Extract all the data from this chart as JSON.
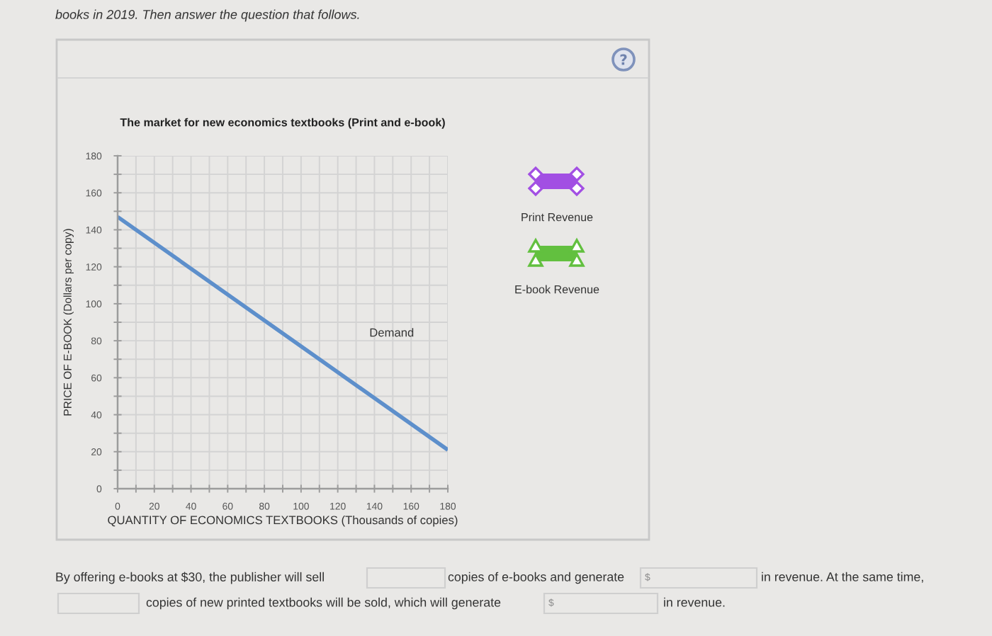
{
  "chart_data": {
    "type": "line",
    "title": "The market for new economics textbooks (Print and e-book)",
    "xlabel": "QUANTITY OF ECONOMICS TEXTBOOKS (Thousands of copies)",
    "ylabel": "PRICE OF E-BOOK (Dollars per copy)",
    "x": [
      0,
      180
    ],
    "series": [
      {
        "name": "Demand",
        "color": "#5d8fcb",
        "values": [
          147,
          21
        ]
      }
    ],
    "xlim": [
      0,
      180
    ],
    "ylim": [
      0,
      180
    ],
    "xticks": [
      0,
      {
        "value": 10,
        "label": null
      },
      20,
      {
        "value": 30,
        "label": null
      },
      40,
      {
        "value": 50,
        "label": null
      },
      60,
      {
        "value": 70,
        "label": null
      },
      80,
      {
        "value": 90,
        "label": null
      },
      100,
      {
        "value": 110,
        "label": null
      },
      120,
      {
        "value": 130,
        "label": null
      },
      140,
      {
        "value": 150,
        "label": null
      },
      160,
      {
        "value": 170,
        "label": null
      },
      180
    ],
    "yticks": [
      0,
      {
        "value": 10,
        "label": null
      },
      20,
      {
        "value": 30,
        "label": null
      },
      40,
      {
        "value": 50,
        "label": null
      },
      60,
      {
        "value": 70,
        "label": null
      },
      80,
      {
        "value": 90,
        "label": null
      },
      100,
      {
        "value": 110,
        "label": null
      },
      120,
      {
        "value": 130,
        "label": null
      },
      140,
      {
        "value": 150,
        "label": null
      },
      160,
      {
        "value": 170,
        "label": null
      },
      180
    ],
    "grid": true,
    "annotations": [
      "books in 2019. Then answer the question that follows.",
      "Print Revenue",
      "E-book Revenue",
      "By offering e-books at $30, the publisher will sell",
      "copies of e-books and generate",
      "$",
      "in revenue. At the same time,",
      "copies of new printed textbooks will be sold, which will generate",
      "$",
      "in revenue."
    ]
  }
}
